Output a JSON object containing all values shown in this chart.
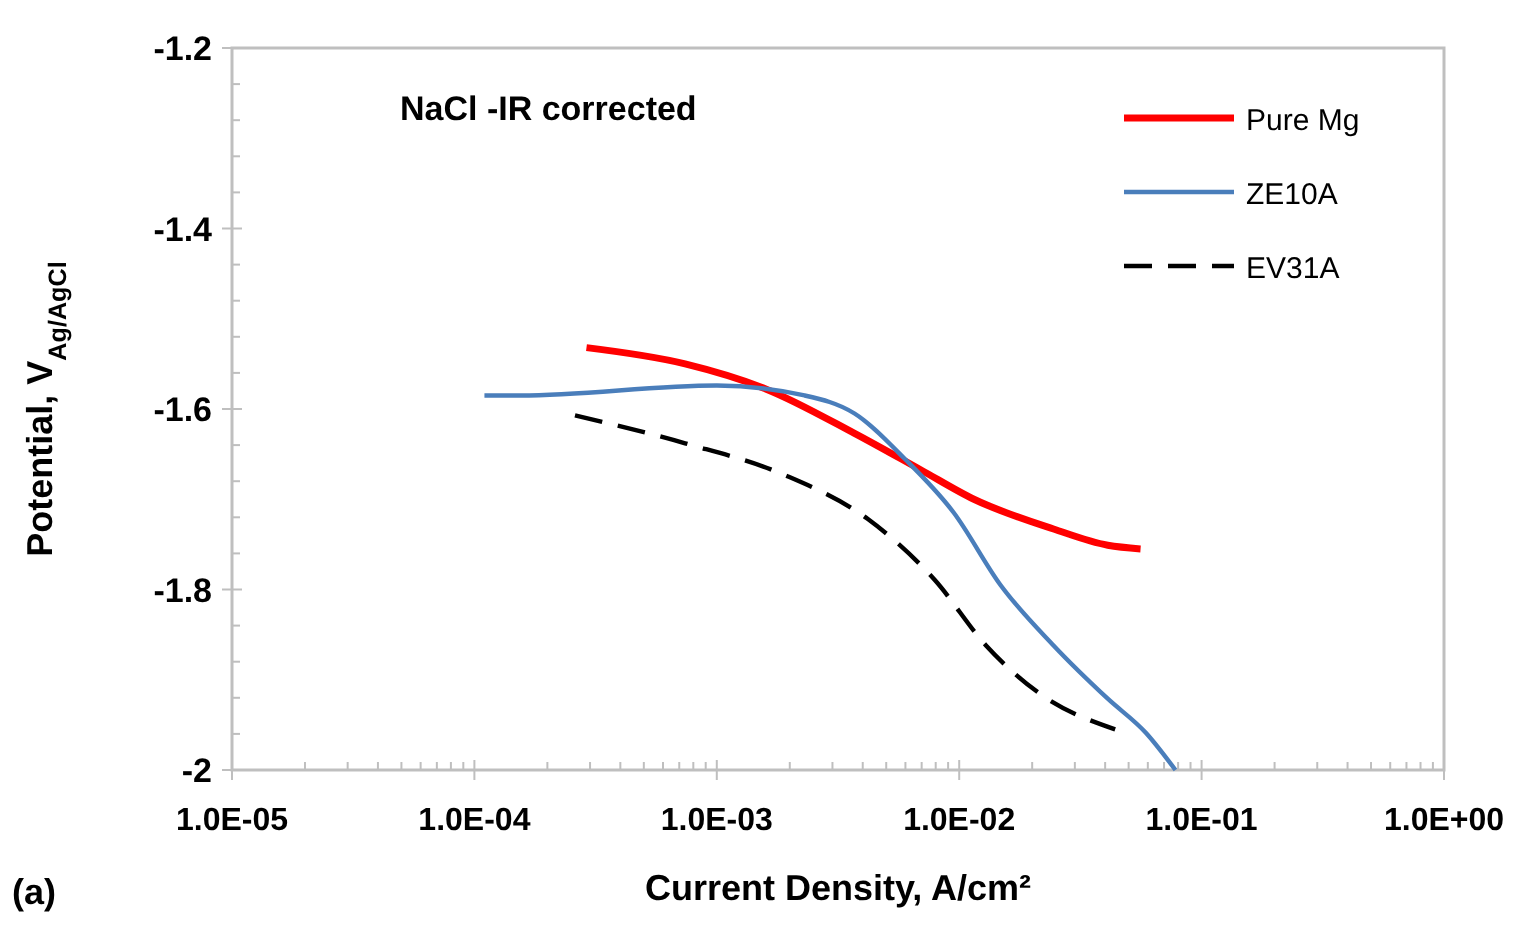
{
  "chart_data": {
    "type": "line",
    "xlabel": "Current Density, A/cm²",
    "ylabel": "Potential, V$_{Ag/AgCl}$",
    "log": "x",
    "grid": false,
    "legend": "top right",
    "marker": "none",
    "xlim": [
      1e-05,
      1
    ],
    "xticks": [
      {
        "value": 1e-05,
        "label": "1.0E-05"
      },
      {
        "value": 0.0001,
        "label": "1.0E-04"
      },
      {
        "value": 0.001,
        "label": "1.0E-03"
      },
      {
        "value": 0.01,
        "label": "1.0E-02"
      },
      {
        "value": 0.1,
        "label": "1.0E-01"
      },
      {
        "value": 1,
        "label": "1.0E+00"
      }
    ],
    "ylim": [
      -2,
      -1.2
    ],
    "yticks": [
      -2,
      -1.8,
      -1.6,
      -1.4,
      -1.2
    ],
    "annotations": [
      "NaCl -IR corrected",
      "(a)"
    ],
    "series": [
      {
        "name": "Pure Mg",
        "color": "#ff0000",
        "line_style": "solid",
        "x": [
          0.00029,
          0.00074,
          0.0016,
          0.0037,
          0.0069,
          0.0115,
          0.0245,
          0.041,
          0.056
        ],
        "values": [
          -1.532,
          -1.55,
          -1.578,
          -1.627,
          -1.667,
          -1.7,
          -1.733,
          -1.751,
          -1.755
        ]
      },
      {
        "name": "ZE10A",
        "color": "#4a7ebb",
        "line_style": "solid",
        "x": [
          0.00011,
          0.000155,
          0.001,
          0.0023,
          0.0037,
          0.006,
          0.0095,
          0.0148,
          0.0245,
          0.041,
          0.059,
          0.078
        ],
        "values": [
          -1.585,
          -1.585,
          -1.574,
          -1.585,
          -1.605,
          -1.656,
          -1.715,
          -1.795,
          -1.862,
          -1.921,
          -1.959,
          -2.0
        ]
      },
      {
        "name": "EV31A",
        "color": "#000000",
        "line_style": "dashed",
        "x": [
          0.00026,
          0.00074,
          0.0019,
          0.0042,
          0.0079,
          0.0129,
          0.0214,
          0.044
        ],
        "values": [
          -1.607,
          -1.638,
          -1.673,
          -1.722,
          -1.789,
          -1.862,
          -1.915,
          -1.955
        ]
      }
    ]
  }
}
